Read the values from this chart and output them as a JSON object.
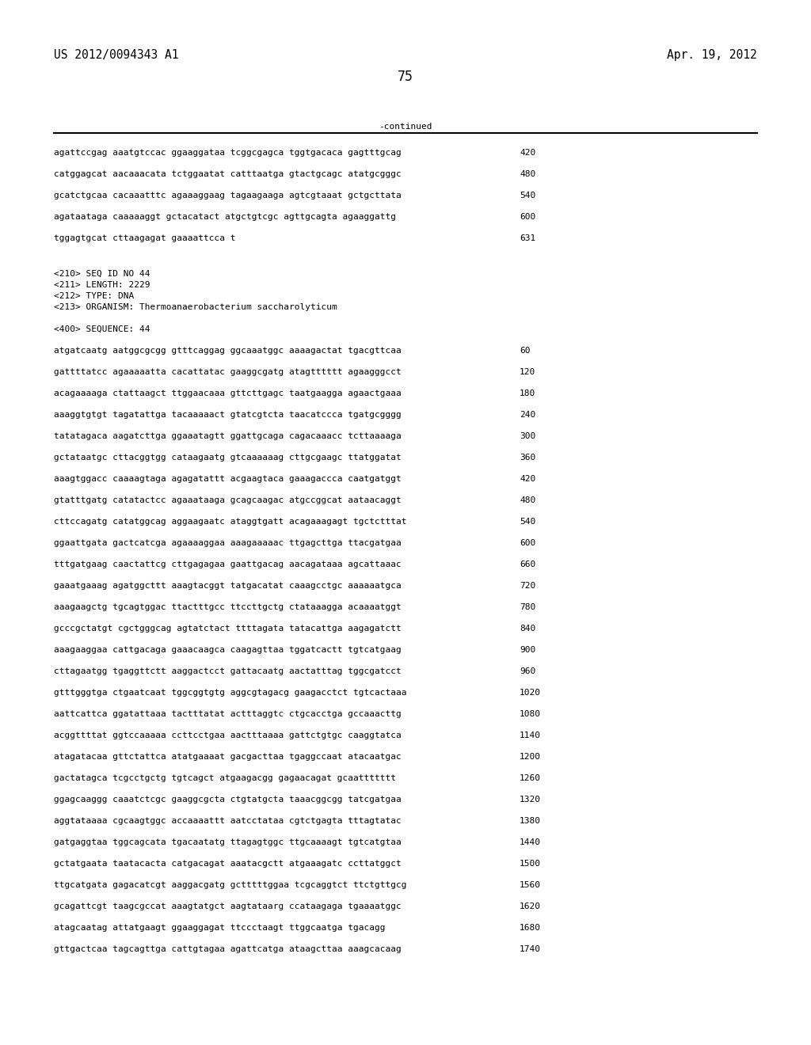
{
  "header_left": "US 2012/0094343 A1",
  "header_right": "Apr. 19, 2012",
  "page_number": "75",
  "continued_label": "-continued",
  "background_color": "#ffffff",
  "text_color": "#000000",
  "font_size_header": 10.5,
  "font_size_body": 8.0,
  "font_size_page": 12,
  "lines_top": [
    [
      "agattccgag aaatgtccac ggaaggataa tcggcgagca tggtgacaca gagtttgcag",
      "420"
    ],
    [
      "catggagcat aacaaacata tctggaatat catttaatga gtactgcagc atatgcgggc",
      "480"
    ],
    [
      "gcatctgcaa cacaaatttc agaaaggaag tagaagaaga agtcgtaaat gctgcttata",
      "540"
    ],
    [
      "agataataga caaaaaggt gctacatact atgctgtcgc agttgcagta agaaggattg",
      "600"
    ],
    [
      "tggagtgcat cttaagagat gaaaattcca t",
      "631"
    ]
  ],
  "metadata_lines": [
    "<210> SEQ ID NO 44",
    "<211> LENGTH: 2229",
    "<212> TYPE: DNA",
    "<213> ORGANISM: Thermoanaerobacterium saccharolyticum"
  ],
  "sequence_label": "<400> SEQUENCE: 44",
  "lines_bottom": [
    [
      "atgatcaatg aatggcgcgg gtttcaggag ggcaaatggc aaaagactat tgacgttcaa",
      "60"
    ],
    [
      "gattttatcc agaaaaatta cacattatac gaaggcgatg atagtttttt agaagggcct",
      "120"
    ],
    [
      "acagaaaaga ctattaagct ttggaacaaa gttcttgagc taatgaagga agaactgaaa",
      "180"
    ],
    [
      "aaaggtgtgt tagatattga tacaaaaact gtatcgtcta taacatccca tgatgcgggg",
      "240"
    ],
    [
      "tatatagaca aagatcttga ggaaatagtt ggattgcaga cagacaaacc tcttaaaaga",
      "300"
    ],
    [
      "gctataatgc cttacggtgg cataagaatg gtcaaaaaag cttgcgaagc ttatggatat",
      "360"
    ],
    [
      "aaagtggacc caaaagtaga agagatattt acgaagtaca gaaagaccca caatgatggt",
      "420"
    ],
    [
      "gtatttgatg catatactcc agaaataaga gcagcaagac atgccggcat aataacaggt",
      "480"
    ],
    [
      "cttccagatg catatggcag aggaagaatc ataggtgatt acagaaagagt tgctctttat",
      "540"
    ],
    [
      "ggaattgata gactcatcga agaaaaggaa aaagaaaaac ttgagcttga ttacgatgaa",
      "600"
    ],
    [
      "tttgatgaag caactattcg cttgagagaa gaattgacag aacagataaa agcattaaac",
      "660"
    ],
    [
      "gaaatgaaag agatggcttt aaagtacggt tatgacatat caaagcctgc aaaaaatgca",
      "720"
    ],
    [
      "aaagaagctg tgcagtggac ttactttgcc ttccttgctg ctataaagga acaaaatggt",
      "780"
    ],
    [
      "gcccgctatgt cgctgggcag agtatctact ttttagata tatacattga aagagatctt",
      "840"
    ],
    [
      "aaagaaggaa cattgacaga gaaacaagca caagagttaa tggatcactt tgtcatgaag",
      "900"
    ],
    [
      "cttagaatgg tgaggttctt aaggactcct gattacaatg aactatttag tggcgatcct",
      "960"
    ],
    [
      "gtttgggtga ctgaatcaat tggcggtgtg aggcgtagacg gaagacctct tgtcactaaa",
      "1020"
    ],
    [
      "aattcattca ggatattaaa tactttatat actttaggtc ctgcacctga gccaaacttg",
      "1080"
    ],
    [
      "acggttttat ggtccaaaaa ccttcctgaa aactttaaaa gattctgtgc caaggtatca",
      "1140"
    ],
    [
      "atagatacaa gttctattca atatgaaaat gacgacttaa tgaggccaat atacaatgac",
      "1200"
    ],
    [
      "gactatagca tcgcctgctg tgtcagct atgaagacgg gagaacagat gcaattttttt",
      "1260"
    ],
    [
      "ggagcaaggg caaatctcgc gaaggcgcta ctgtatgcta taaacggcgg tatcgatgaa",
      "1320"
    ],
    [
      "aggtataaaa cgcaagtggc accaaaattt aatcctataa cgtctgagta tttagtatac",
      "1380"
    ],
    [
      "gatgaggtaa tggcagcata tgacaatatg ttagagtggc ttgcaaaagt tgtcatgtaa",
      "1440"
    ],
    [
      "gctatgaata taatacacta catgacagat aaatacgctt atgaaagatc ccttatggct",
      "1500"
    ],
    [
      "ttgcatgata gagacatcgt aaggacgatg gctttttggaa tcgcaggtct ttctgttgcg",
      "1560"
    ],
    [
      "gcagattcgt taagcgccat aaagtatgct aagtataarg ccataagaga tgaaaatggc",
      "1620"
    ],
    [
      "atagcaatag attatgaagt ggaaggagat ttccctaagt ttggcaatga tgacagg",
      "1680"
    ],
    [
      "gttgactcaa tagcagttga cattgtagaa agattcatga ataagcttaa aaagcacaag",
      "1740"
    ]
  ]
}
